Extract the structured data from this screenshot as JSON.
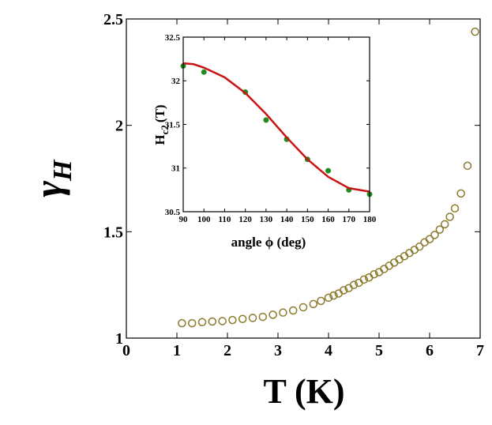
{
  "chart_data": [
    {
      "type": "scatter",
      "xlabel": "T (K)",
      "ylabel": "γ",
      "ylabel_sub": "H",
      "xlim": [
        0,
        7
      ],
      "ylim": [
        1,
        2.5
      ],
      "xticks": [
        0,
        1,
        2,
        3,
        4,
        5,
        6,
        7
      ],
      "yticks": [
        1,
        1.5,
        2,
        2.5
      ],
      "series": [
        {
          "color": "#8a7a2c",
          "x": [
            1.1,
            1.3,
            1.5,
            1.7,
            1.9,
            2.1,
            2.3,
            2.5,
            2.7,
            2.9,
            3.1,
            3.3,
            3.5,
            3.7,
            3.85,
            4.0,
            4.1,
            4.2,
            4.3,
            4.4,
            4.5,
            4.6,
            4.7,
            4.8,
            4.9,
            5.0,
            5.1,
            5.2,
            5.3,
            5.4,
            5.5,
            5.6,
            5.7,
            5.8,
            5.9,
            6.0,
            6.1,
            6.2,
            6.3,
            6.4,
            6.5,
            6.62,
            6.75,
            6.9
          ],
          "values": [
            1.07,
            1.07,
            1.075,
            1.078,
            1.08,
            1.085,
            1.09,
            1.095,
            1.1,
            1.11,
            1.12,
            1.13,
            1.145,
            1.16,
            1.175,
            1.19,
            1.2,
            1.21,
            1.225,
            1.235,
            1.25,
            1.26,
            1.275,
            1.285,
            1.3,
            1.31,
            1.325,
            1.34,
            1.355,
            1.37,
            1.385,
            1.4,
            1.415,
            1.43,
            1.45,
            1.465,
            1.485,
            1.51,
            1.535,
            1.57,
            1.61,
            1.68,
            1.81,
            2.44
          ]
        }
      ]
    },
    {
      "type": "scatter",
      "xlabel": "angle ϕ (deg)",
      "ylabel": "H",
      "ylabel_sub": "c2",
      "ylabel_unit": "(T)",
      "xlim": [
        90,
        180
      ],
      "ylim": [
        30.5,
        32.5
      ],
      "xticks": [
        90,
        100,
        110,
        120,
        130,
        140,
        150,
        160,
        170,
        180
      ],
      "yticks": [
        {
          "value": 30.5,
          "label": "30.5"
        },
        31,
        31.5,
        32,
        32.5
      ],
      "series": [
        {
          "color": "#1e8c1e",
          "x": [
            90,
            100,
            120,
            130,
            140,
            150,
            160,
            170,
            180
          ],
          "values": [
            32.17,
            32.1,
            31.87,
            31.55,
            31.33,
            31.1,
            30.97,
            30.75,
            30.7
          ]
        },
        {
          "color": "#c81414",
          "line": true,
          "x": [
            90,
            95,
            100,
            110,
            120,
            130,
            140,
            150,
            160,
            170,
            180
          ],
          "values": [
            32.2,
            32.19,
            32.15,
            32.04,
            31.86,
            31.62,
            31.35,
            31.1,
            30.9,
            30.77,
            30.73
          ]
        }
      ]
    }
  ]
}
